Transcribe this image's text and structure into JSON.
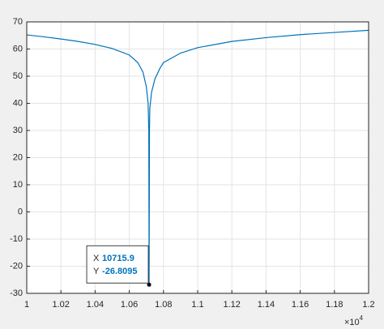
{
  "chart_data": {
    "type": "line",
    "x": [
      1.0,
      1.01,
      1.02,
      1.03,
      1.04,
      1.05,
      1.06,
      1.065,
      1.068,
      1.07,
      1.071,
      1.0714,
      1.07159,
      1.0718,
      1.072,
      1.073,
      1.075,
      1.078,
      1.08,
      1.09,
      1.1,
      1.12,
      1.14,
      1.16,
      1.18,
      1.2
    ],
    "series": [
      {
        "color": "#0072bd",
        "values": [
          65.2,
          64.5,
          63.7,
          62.8,
          61.7,
          60.2,
          57.8,
          55,
          51.5,
          46,
          40,
          30,
          -26.8095,
          30,
          38,
          44,
          49,
          53,
          55,
          58.5,
          60.5,
          62.8,
          64.2,
          65.3,
          66.1,
          66.9
        ]
      }
    ],
    "xlim": [
      1,
      1.2
    ],
    "xticks": [
      1,
      1.02,
      1.04,
      1.06,
      1.08,
      1.1,
      1.12,
      1.14,
      1.16,
      1.18,
      1.2
    ],
    "x_multiplier": {
      "base": "×10",
      "exponent": "4"
    },
    "ylim": [
      -30,
      70
    ],
    "yticks": [
      -30,
      -20,
      -10,
      0,
      10,
      20,
      30,
      40,
      50,
      60,
      70
    ],
    "grid": true,
    "datatip": {
      "x": 1.07159,
      "y": -26.8095,
      "x_name": "X",
      "x_label": "10715.9",
      "y_name": "Y"
    }
  }
}
